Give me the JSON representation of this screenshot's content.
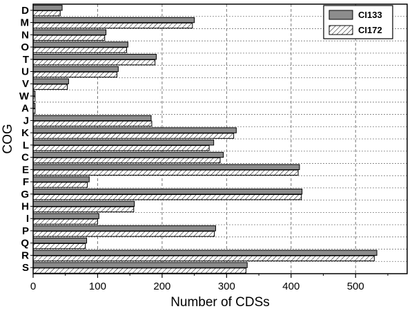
{
  "chart_data": {
    "type": "bar",
    "orientation": "horizontal",
    "categories": [
      "D",
      "M",
      "N",
      "O",
      "T",
      "U",
      "V",
      "W",
      "A",
      "J",
      "K",
      "L",
      "C",
      "E",
      "F",
      "G",
      "H",
      "I",
      "P",
      "Q",
      "R",
      "S"
    ],
    "series": [
      {
        "name": "CI133",
        "fill": "#8c8c8c",
        "pattern": "solid",
        "values": [
          45,
          250,
          113,
          147,
          191,
          132,
          55,
          3,
          3,
          183,
          315,
          280,
          295,
          413,
          87,
          417,
          157,
          102,
          283,
          83,
          533,
          332
        ]
      },
      {
        "name": "CI172",
        "fill": "#ffffff",
        "pattern": "diagonal-hatch",
        "values": [
          42,
          247,
          111,
          145,
          189,
          130,
          53,
          3,
          3,
          184,
          311,
          273,
          290,
          411,
          84,
          416,
          156,
          100,
          281,
          81,
          529,
          330
        ]
      }
    ],
    "xlabel": "Number of CDSs",
    "ylabel": "COG",
    "xlim": [
      0,
      580
    ],
    "xticks": [
      0,
      100,
      200,
      300,
      400,
      500
    ],
    "grid": true,
    "legend_position": "top-right",
    "colors": {
      "axis": "#000000",
      "grid": "#777777",
      "bar_outline": "#000000"
    }
  }
}
